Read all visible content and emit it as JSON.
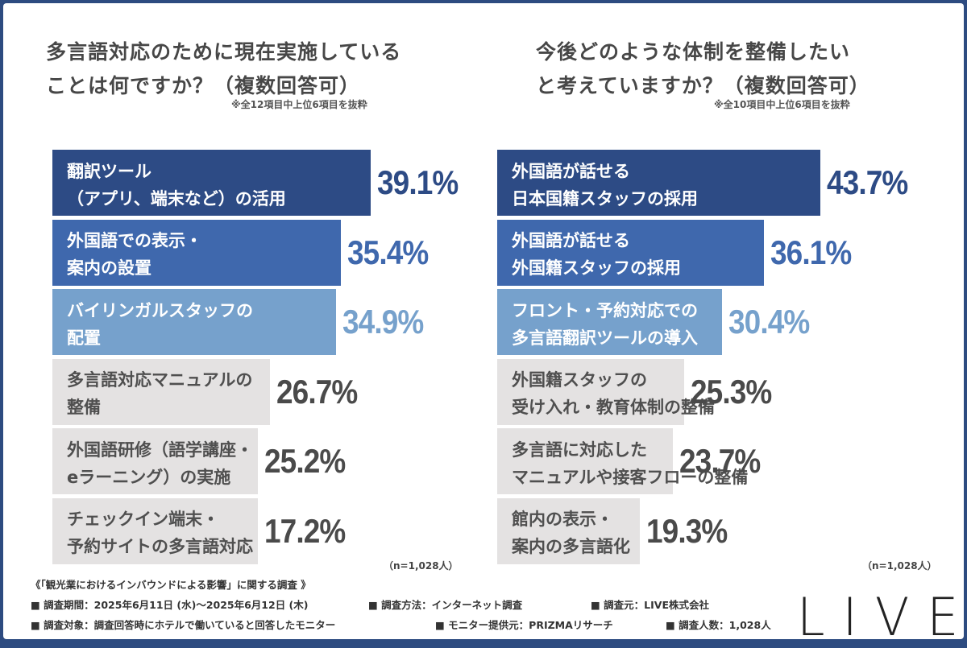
{
  "chart_data": [
    {
      "type": "bar",
      "orientation": "horizontal",
      "title": "多言語対応のために現在実施していることは何ですか？（複数回答可）",
      "title_lines": [
        "多言語対応のために現在実施している",
        "ことは何ですか？（複数回答可）"
      ],
      "note": "※全12項目中上位6項目を抜粋",
      "n_label": "（n=1,028人）",
      "unit": "%",
      "categories": [
        [
          "翻訳ツール",
          "（アプリ、端末など）の活用"
        ],
        [
          "外国語での表示・",
          "案内の設置"
        ],
        [
          "バイリンガルスタッフの",
          "配置"
        ],
        [
          "多言語対応マニュアルの",
          "整備"
        ],
        [
          "外国語研修（語学講座・",
          "eラーニング）の実施"
        ],
        [
          "チェックイン端末・",
          "予約サイトの多言語対応"
        ]
      ],
      "values": [
        39.1,
        35.4,
        34.9,
        26.7,
        25.2,
        17.2
      ],
      "labels": [
        "39.1%",
        "35.4%",
        "34.9%",
        "26.7%",
        "25.2%",
        "17.2%"
      ]
    },
    {
      "type": "bar",
      "orientation": "horizontal",
      "title": "今後どのような体制を整備したいと考えていますか？（複数回答可）",
      "title_lines": [
        "今後どのような体制を整備したい",
        "と考えていますか？（複数回答可）"
      ],
      "note": "※全10項目中上位6項目を抜粋",
      "n_label": "（n=1,028人）",
      "unit": "%",
      "categories": [
        [
          "外国語が話せる",
          "日本国籍スタッフの採用"
        ],
        [
          "外国語が話せる",
          "外国籍スタッフの採用"
        ],
        [
          "フロント・予約対応での",
          "多言語翻訳ツールの導入"
        ],
        [
          "外国籍スタッフの",
          "受け入れ・教育体制の整備"
        ],
        [
          "多言語に対応した",
          "マニュアルや接客フローの整備"
        ],
        [
          "館内の表示・",
          "案内の多言語化"
        ]
      ],
      "values": [
        43.7,
        36.1,
        30.4,
        25.3,
        23.7,
        19.3
      ],
      "labels": [
        "43.7%",
        "36.1%",
        "30.4%",
        "25.3%",
        "23.7%",
        "19.3%"
      ]
    }
  ],
  "colors": {
    "bars": [
      "#2d4b85",
      "#3f68ad",
      "#76a1cc",
      "#e4e2e2",
      "#e4e2e2",
      "#e4e2e2"
    ],
    "bar_text": [
      "#ffffff",
      "#ffffff",
      "#ffffff",
      "#4f4f4f",
      "#4f4f4f",
      "#4f4f4f"
    ],
    "pct_text": [
      "#2d4b85",
      "#3f68ad",
      "#76a1cc",
      "#4a4a4a",
      "#4a4a4a",
      "#4a4a4a"
    ]
  },
  "footer": {
    "heading": "《「観光業におけるインバウンドによる影響」に関する調査 》",
    "period": "■ 調査期間：2025年6月11日 (水)～2025年6月12日 (木)",
    "method": "■ 調査方法：インターネット調査",
    "source": "■ 調査元：LIVE株式会社",
    "target": "■ 調査対象：調査回答時にホテルで働いていると回答したモニター",
    "provider": "■ モニター提供元：PRIZMAリサーチ",
    "count": "■ 調査人数：1,028人"
  },
  "logo": "LIVE"
}
